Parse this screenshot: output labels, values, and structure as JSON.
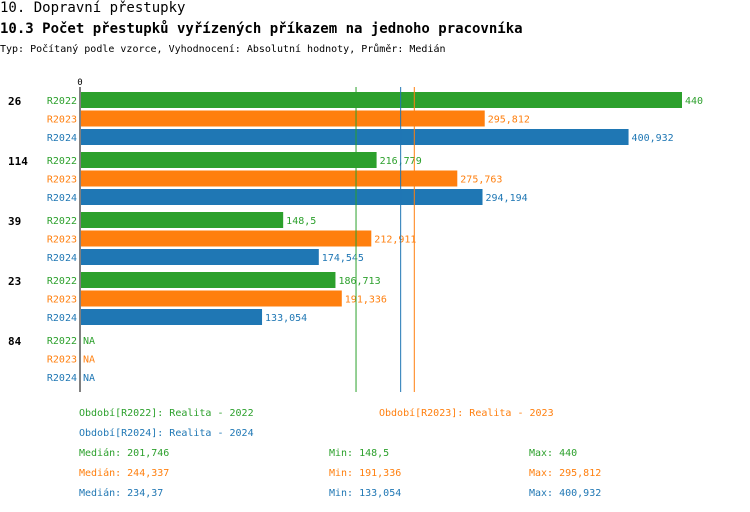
{
  "header": {
    "title": "10. Dopravní přestupky",
    "subtitle": "10.3 Počet přestupků vyřízených příkazem na jednoho pracovníka",
    "type_line": "Typ: Počítaný podle vzorce, Vyhodnocení: Absolutní hodnoty, Průměr: Medián"
  },
  "colors": {
    "R2022": "#2ca02c",
    "R2023": "#ff7f0e",
    "R2024": "#1f77b4"
  },
  "chart_data": {
    "type": "bar",
    "orientation": "horizontal",
    "axis_zero_label": "0",
    "xlim": [
      0,
      440
    ],
    "series_names": [
      "R2022",
      "R2023",
      "R2024"
    ],
    "groups": [
      {
        "label": "26",
        "values": [
          440,
          295.812,
          400.932
        ],
        "texts": [
          "440",
          "295,812",
          "400,932"
        ]
      },
      {
        "label": "114",
        "values": [
          216.779,
          275.763,
          294.194
        ],
        "texts": [
          "216,779",
          "275,763",
          "294,194"
        ]
      },
      {
        "label": "39",
        "values": [
          148.5,
          212.911,
          174.545
        ],
        "texts": [
          "148,5",
          "212,911",
          "174,545"
        ]
      },
      {
        "label": "23",
        "values": [
          186.713,
          191.336,
          133.054
        ],
        "texts": [
          "186,713",
          "191,336",
          "133,054"
        ]
      },
      {
        "label": "84",
        "values": [
          null,
          null,
          null
        ],
        "texts": [
          "NA",
          "NA",
          "NA"
        ]
      }
    ],
    "median_lines": [
      {
        "series": "R2022",
        "value": 201.746
      },
      {
        "series": "R2023",
        "value": 244.337
      },
      {
        "series": "R2024",
        "value": 234.37
      }
    ]
  },
  "legend": {
    "period_2022": "Období[R2022]: Realita - 2022",
    "period_2023": "Období[R2023]: Realita - 2023",
    "period_2024": "Období[R2024]: Realita - 2024",
    "stats": [
      {
        "series": "R2022",
        "median": "Medián: 201,746",
        "min": "Min: 148,5",
        "max": "Max: 440"
      },
      {
        "series": "R2023",
        "median": "Medián: 244,337",
        "min": "Min: 191,336",
        "max": "Max: 295,812"
      },
      {
        "series": "R2024",
        "median": "Medián: 234,37",
        "min": "Min: 133,054",
        "max": "Max: 400,932"
      }
    ]
  }
}
